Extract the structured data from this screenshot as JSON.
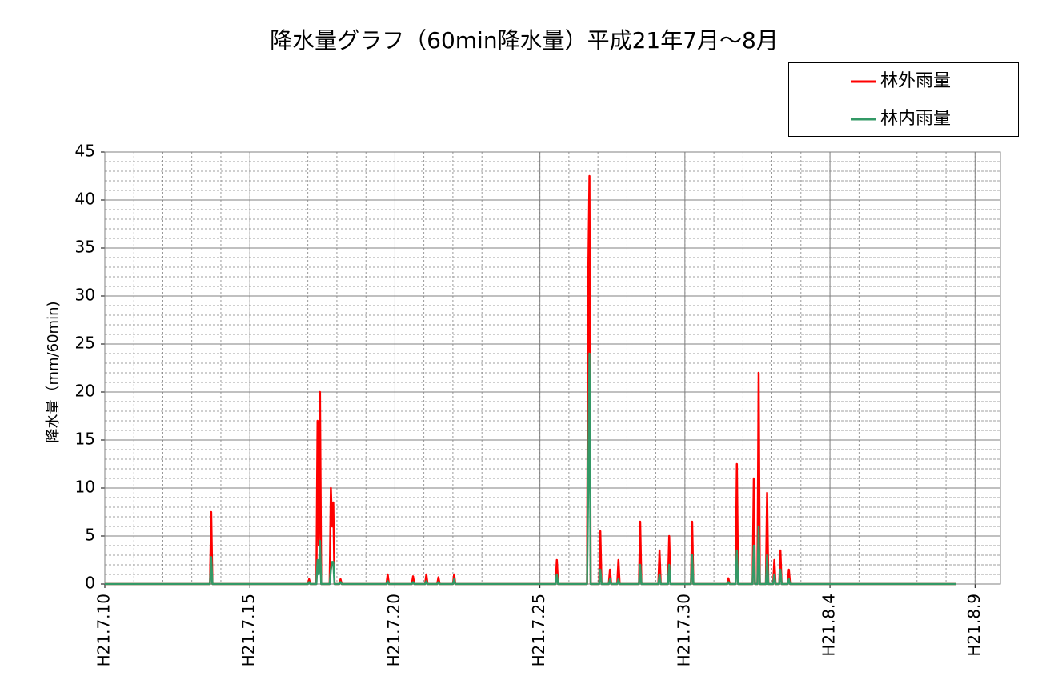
{
  "chart_data": {
    "type": "line",
    "title": "降水量グラフ（60min降水量）平成21年7月～8月",
    "y_label": "降水量（mm/60min)",
    "x": [
      "2009-07-10T00:00",
      "2009-07-13T15:00",
      "2009-07-13T16:00",
      "2009-07-13T17:00",
      "2009-07-17T00:00",
      "2009-07-17T01:00",
      "2009-07-17T02:00",
      "2009-07-17T07:00",
      "2009-07-17T08:00",
      "2009-07-17T09:00",
      "2009-07-17T10:00",
      "2009-07-17T11:00",
      "2009-07-17T18:00",
      "2009-07-17T19:00",
      "2009-07-17T20:00",
      "2009-07-17T21:00",
      "2009-07-17T22:00",
      "2009-07-18T02:00",
      "2009-07-18T03:00",
      "2009-07-18T04:00",
      "2009-07-19T17:00",
      "2009-07-19T18:00",
      "2009-07-19T19:00",
      "2009-07-20T14:00",
      "2009-07-20T15:00",
      "2009-07-20T16:00",
      "2009-07-21T01:00",
      "2009-07-21T02:00",
      "2009-07-21T03:00",
      "2009-07-21T11:00",
      "2009-07-21T12:00",
      "2009-07-21T13:00",
      "2009-07-22T00:00",
      "2009-07-22T01:00",
      "2009-07-22T02:00",
      "2009-07-25T13:00",
      "2009-07-25T14:00",
      "2009-07-25T15:00",
      "2009-07-26T15:00",
      "2009-07-26T16:00",
      "2009-07-26T17:00",
      "2009-07-26T18:00",
      "2009-07-27T01:00",
      "2009-07-27T02:00",
      "2009-07-27T03:00",
      "2009-07-27T09:00",
      "2009-07-27T10:00",
      "2009-07-27T11:00",
      "2009-07-27T16:00",
      "2009-07-27T17:00",
      "2009-07-27T18:00",
      "2009-07-28T10:00",
      "2009-07-28T11:00",
      "2009-07-28T12:00",
      "2009-07-29T02:00",
      "2009-07-29T03:00",
      "2009-07-29T04:00",
      "2009-07-29T10:00",
      "2009-07-29T11:00",
      "2009-07-29T12:00",
      "2009-07-30T05:00",
      "2009-07-30T06:00",
      "2009-07-30T07:00",
      "2009-07-31T11:00",
      "2009-07-31T12:00",
      "2009-07-31T13:00",
      "2009-07-31T18:00",
      "2009-07-31T19:00",
      "2009-07-31T20:00",
      "2009-08-01T08:00",
      "2009-08-01T09:00",
      "2009-08-01T10:00",
      "2009-08-01T12:00",
      "2009-08-01T13:00",
      "2009-08-01T14:00",
      "2009-08-01T19:00",
      "2009-08-01T20:00",
      "2009-08-01T21:00",
      "2009-08-02T01:00",
      "2009-08-02T02:00",
      "2009-08-02T03:00",
      "2009-08-02T06:00",
      "2009-08-02T07:00",
      "2009-08-02T08:00",
      "2009-08-02T13:00",
      "2009-08-02T14:00",
      "2009-08-02T15:00",
      "2009-08-08T08:00"
    ],
    "series": [
      {
        "name": "林外雨量",
        "color": "#ff0000",
        "values": [
          0,
          0,
          7.5,
          0,
          0,
          0.5,
          0,
          0,
          17,
          4,
          20,
          0,
          0,
          10,
          6,
          8.5,
          0,
          0,
          0.5,
          0,
          0,
          1,
          0,
          0,
          0.8,
          0,
          0,
          1,
          0,
          0,
          0.7,
          0,
          0,
          1,
          0,
          0,
          2.5,
          0,
          0,
          32,
          42.5,
          0,
          0,
          5.5,
          0,
          0,
          1.5,
          0,
          0,
          2.5,
          0,
          0,
          6.5,
          0,
          0,
          3.5,
          0,
          0,
          5,
          0,
          0,
          6.5,
          0,
          0,
          0.6,
          0,
          0,
          12.5,
          0,
          0,
          11,
          0,
          0,
          22,
          0,
          0,
          9.5,
          0,
          0,
          2.5,
          0,
          0,
          3.5,
          0,
          0,
          1.5,
          0,
          0
        ]
      },
      {
        "name": "林内雨量",
        "color": "#339966",
        "values": [
          0,
          0,
          2.8,
          0,
          0,
          0.2,
          0,
          0,
          2.5,
          1,
          4.5,
          0,
          0,
          1.5,
          2.3,
          2.3,
          0,
          0,
          0.2,
          0,
          0,
          0.3,
          0,
          0,
          0.2,
          0,
          0,
          0.3,
          0,
          0,
          0.2,
          0,
          0,
          0.5,
          0,
          0,
          1,
          0,
          0,
          10.5,
          24,
          0,
          0,
          1.5,
          0,
          0,
          0.5,
          0,
          0,
          0.5,
          0,
          0,
          2,
          0,
          0,
          1,
          0,
          0,
          2,
          0,
          0,
          3,
          0,
          0,
          0.2,
          0,
          0,
          3.5,
          0,
          0,
          4,
          0,
          0,
          6,
          0,
          0,
          3,
          0,
          0,
          1,
          0,
          0,
          1.5,
          0,
          0,
          0.5,
          0,
          0
        ]
      }
    ],
    "xlim": [
      "2009-07-10T00:00",
      "2009-08-09T21:00"
    ],
    "xticks": [
      {
        "value": "2009-07-10T00:00",
        "label": "H21.7.10"
      },
      {
        "value": "2009-07-15T00:00",
        "label": "H21.7.15"
      },
      {
        "value": "2009-07-20T00:00",
        "label": "H21.7.20"
      },
      {
        "value": "2009-07-25T00:00",
        "label": "H21.7.25"
      },
      {
        "value": "2009-07-30T00:00",
        "label": "H21.7.30"
      },
      {
        "value": "2009-08-04T00:00",
        "label": "H21.8.4"
      },
      {
        "value": "2009-08-09T00:00",
        "label": "H21.8.9"
      }
    ],
    "ylim": [
      0,
      45
    ],
    "yticks": [
      0,
      5,
      10,
      15,
      20,
      25,
      30,
      35,
      40,
      45
    ],
    "grid": true,
    "legend": "upper right"
  }
}
